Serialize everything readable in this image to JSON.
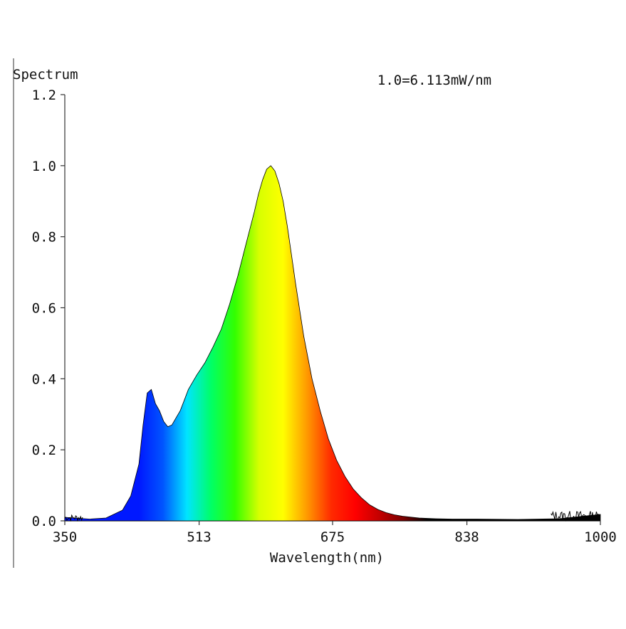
{
  "chart_data": {
    "type": "area",
    "ylabel": "Spectrum",
    "xlabel": "Wavelength(nm)",
    "annotation": "1.0=6.113mW/nm",
    "xlim": [
      350,
      1000
    ],
    "ylim": [
      0,
      1.2
    ],
    "x_ticks": [
      "350",
      "513",
      "675",
      "838",
      "1000"
    ],
    "y_ticks": [
      "0.0",
      "0.2",
      "0.4",
      "0.6",
      "0.8",
      "1.0",
      "1.2"
    ],
    "grid": false,
    "fill": "visible-spectrum gradient",
    "series": [
      {
        "x": [
          350,
          380,
          400,
          420,
          430,
          440,
          445,
          450,
          455,
          460,
          465,
          470,
          475,
          480,
          485,
          490,
          495,
          500,
          505,
          510,
          520,
          530,
          540,
          550,
          560,
          570,
          580,
          585,
          590,
          595,
          600,
          605,
          610,
          615,
          620,
          625,
          630,
          640,
          650,
          660,
          670,
          680,
          690,
          700,
          710,
          720,
          730,
          740,
          750,
          760,
          780,
          800,
          820,
          850,
          900,
          950,
          1000
        ],
        "values": [
          0.01,
          0.005,
          0.008,
          0.03,
          0.07,
          0.16,
          0.27,
          0.36,
          0.37,
          0.33,
          0.31,
          0.28,
          0.265,
          0.27,
          0.29,
          0.31,
          0.34,
          0.37,
          0.39,
          0.41,
          0.445,
          0.49,
          0.54,
          0.61,
          0.69,
          0.78,
          0.87,
          0.92,
          0.96,
          0.99,
          1.0,
          0.985,
          0.95,
          0.9,
          0.83,
          0.75,
          0.67,
          0.52,
          0.4,
          0.31,
          0.23,
          0.17,
          0.125,
          0.09,
          0.065,
          0.045,
          0.032,
          0.023,
          0.017,
          0.013,
          0.008,
          0.006,
          0.005,
          0.005,
          0.004,
          0.006,
          0.018
        ]
      }
    ]
  },
  "spectrum_colors": [
    "#0018ff",
    "#0055ff",
    "#00e5ff",
    "#00ff66",
    "#33ff00",
    "#d8ff00",
    "#ffff00",
    "#ff9900",
    "#ff2a00",
    "#ff0000",
    "#c40000",
    "#7a0000",
    "#000000"
  ]
}
